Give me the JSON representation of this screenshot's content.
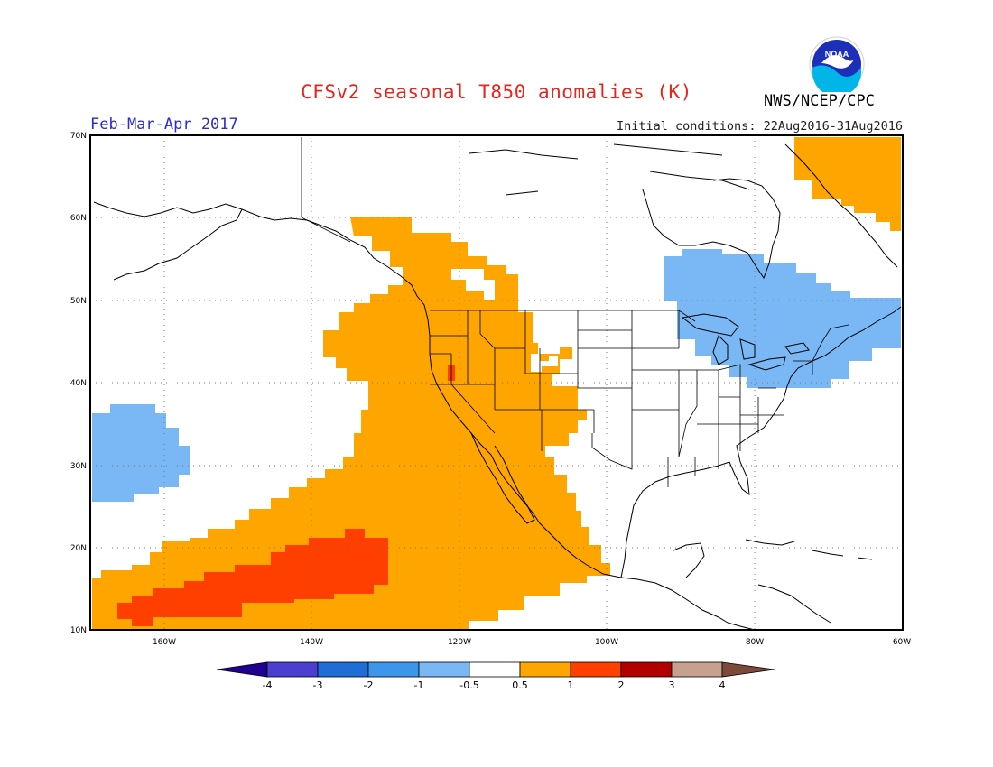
{
  "header": {
    "title": "CFSv2 seasonal T850 anomalies (K)",
    "period": "Feb-Mar-Apr 2017",
    "initial_conditions": "Initial conditions: 22Aug2016-31Aug2016",
    "agency": "NWS/NCEP/CPC",
    "logo_text": "NOAA"
  },
  "map": {
    "lat_labels": [
      "70N",
      "60N",
      "50N",
      "40N",
      "30N",
      "20N",
      "10N"
    ],
    "lon_labels": [
      "160W",
      "140W",
      "120W",
      "100W",
      "80W",
      "60W"
    ],
    "background": "#ffffff",
    "coastline_color": "#000000",
    "grid": "dotted"
  },
  "colorbar": {
    "labels": [
      "-4",
      "-3",
      "-2",
      "-1",
      "-0.5",
      "0.5",
      "1",
      "2",
      "3",
      "4"
    ],
    "colors": [
      "#200090",
      "#4a3fd0",
      "#1f6ed6",
      "#3c96ec",
      "#7ab8f5",
      "#ffffff",
      "#ffa500",
      "#ff3f00",
      "#b20000",
      "#c8a090",
      "#7b4a3a"
    ]
  },
  "anomaly_colors": {
    "warm_0_5_to_1": "#ffa500",
    "warm_1_to_2": "#ff3f00",
    "cool_neg1_to_neg0_5": "#7ab8f5"
  }
}
